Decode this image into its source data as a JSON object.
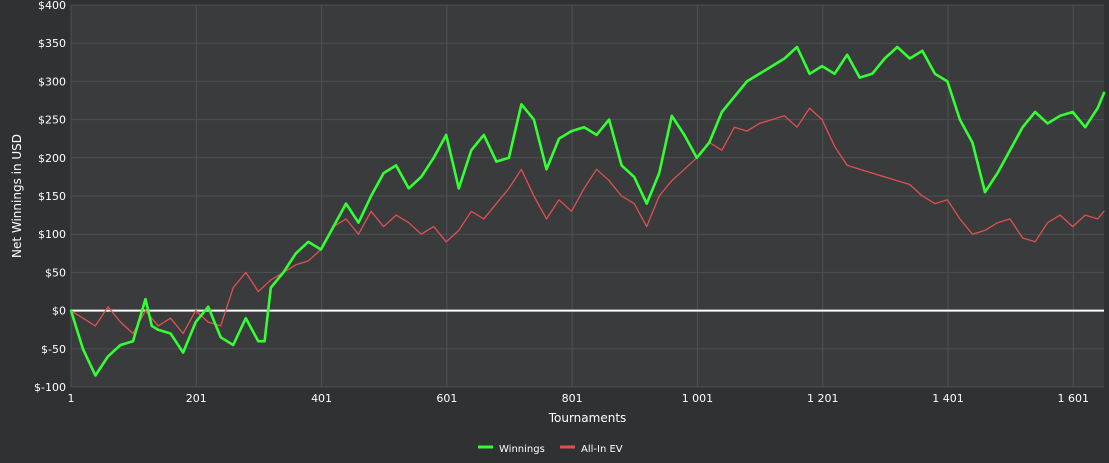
{
  "chart_data": {
    "type": "line",
    "xlabel": "Tournaments",
    "ylabel": "Net Winnings in USD",
    "xlim": [
      1,
      1650
    ],
    "ylim": [
      -100,
      400
    ],
    "x_ticks": [
      1,
      201,
      401,
      601,
      801,
      1001,
      1201,
      1401,
      1601
    ],
    "x_tick_labels": [
      "1",
      "201",
      "401",
      "601",
      "801",
      "1 001",
      "1 201",
      "1 401",
      "1 601"
    ],
    "y_ticks": [
      -100,
      -50,
      0,
      50,
      100,
      150,
      200,
      250,
      300,
      350,
      400
    ],
    "y_tick_labels": [
      "$-100",
      "$-50",
      "$0",
      "$50",
      "$100",
      "$150",
      "$200",
      "$250",
      "$300",
      "$350",
      "$400"
    ],
    "grid": true,
    "legend_position": "bottom-center",
    "zero_line_color": "#ffffff",
    "series": [
      {
        "name": "Winnings",
        "color": "#33ff33",
        "x": [
          1,
          20,
          40,
          60,
          80,
          100,
          120,
          130,
          140,
          160,
          180,
          200,
          220,
          240,
          260,
          280,
          300,
          310,
          320,
          340,
          360,
          380,
          400,
          420,
          440,
          460,
          480,
          500,
          520,
          540,
          560,
          580,
          600,
          620,
          640,
          660,
          680,
          700,
          720,
          740,
          760,
          780,
          800,
          820,
          840,
          860,
          880,
          900,
          920,
          940,
          960,
          980,
          1000,
          1020,
          1040,
          1060,
          1080,
          1100,
          1120,
          1140,
          1160,
          1180,
          1200,
          1220,
          1240,
          1260,
          1280,
          1300,
          1320,
          1340,
          1360,
          1380,
          1400,
          1420,
          1440,
          1460,
          1480,
          1500,
          1520,
          1540,
          1560,
          1580,
          1600,
          1620,
          1640,
          1650
        ],
        "y": [
          0,
          -50,
          -85,
          -60,
          -45,
          -40,
          15,
          -20,
          -25,
          -30,
          -55,
          -15,
          5,
          -35,
          -45,
          -10,
          -40,
          -40,
          30,
          50,
          75,
          90,
          80,
          110,
          140,
          115,
          150,
          180,
          190,
          160,
          175,
          200,
          230,
          160,
          210,
          230,
          195,
          200,
          270,
          250,
          185,
          225,
          235,
          240,
          230,
          250,
          190,
          175,
          140,
          180,
          255,
          230,
          200,
          220,
          260,
          280,
          300,
          310,
          320,
          330,
          345,
          310,
          320,
          310,
          335,
          305,
          310,
          330,
          345,
          330,
          340,
          310,
          300,
          250,
          220,
          155,
          180,
          210,
          240,
          260,
          245,
          255,
          260,
          240,
          265,
          285
        ]
      },
      {
        "name": "All-In EV",
        "color": "#e05050",
        "x": [
          1,
          20,
          40,
          60,
          80,
          100,
          120,
          140,
          160,
          180,
          200,
          220,
          240,
          260,
          280,
          300,
          320,
          340,
          360,
          380,
          400,
          420,
          440,
          460,
          480,
          500,
          520,
          540,
          560,
          580,
          600,
          620,
          640,
          660,
          680,
          700,
          720,
          740,
          760,
          780,
          800,
          820,
          840,
          860,
          880,
          900,
          920,
          940,
          960,
          980,
          1000,
          1020,
          1040,
          1060,
          1080,
          1100,
          1120,
          1140,
          1160,
          1180,
          1200,
          1220,
          1240,
          1260,
          1280,
          1300,
          1320,
          1340,
          1360,
          1380,
          1400,
          1420,
          1440,
          1460,
          1480,
          1500,
          1520,
          1540,
          1560,
          1580,
          1600,
          1620,
          1640,
          1650
        ],
        "y": [
          0,
          -10,
          -20,
          5,
          -15,
          -30,
          0,
          -20,
          -10,
          -30,
          0,
          -15,
          -20,
          30,
          50,
          25,
          40,
          50,
          60,
          65,
          80,
          110,
          120,
          100,
          130,
          110,
          125,
          115,
          100,
          110,
          90,
          105,
          130,
          120,
          140,
          160,
          185,
          150,
          120,
          145,
          130,
          160,
          185,
          170,
          150,
          140,
          110,
          150,
          170,
          185,
          200,
          220,
          210,
          240,
          235,
          245,
          250,
          255,
          240,
          265,
          250,
          215,
          190,
          185,
          180,
          175,
          170,
          165,
          150,
          140,
          145,
          120,
          100,
          105,
          115,
          120,
          95,
          90,
          115,
          125,
          110,
          125,
          120,
          130
        ]
      }
    ]
  }
}
